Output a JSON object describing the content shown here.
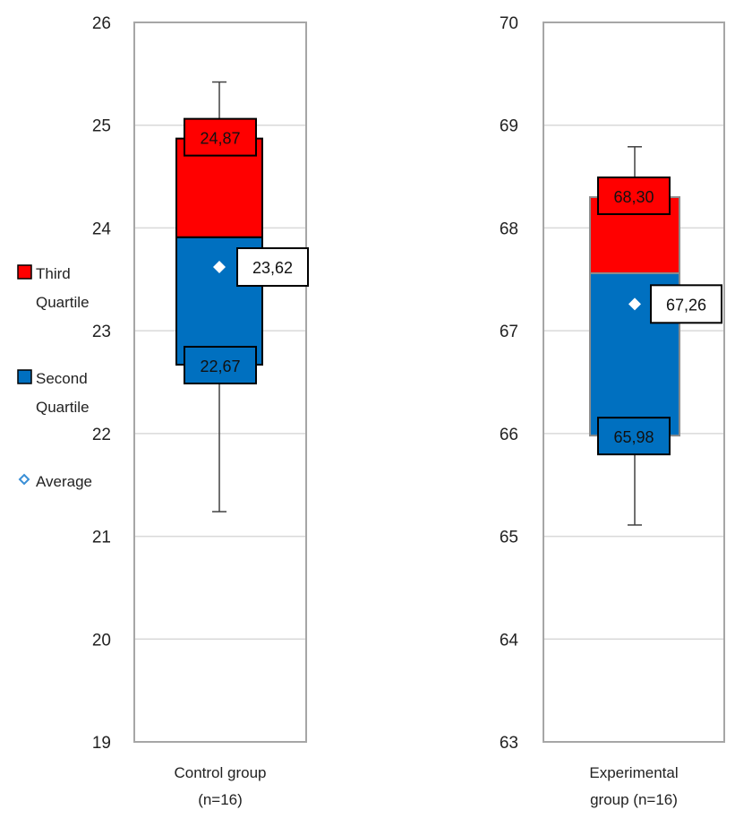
{
  "chart_data": [
    {
      "type": "box",
      "category": "Control group",
      "category_line2": "(n=16)",
      "ylim": [
        19,
        26
      ],
      "yticks": [
        "19",
        "20",
        "21",
        "22",
        "23",
        "24",
        "25",
        "26"
      ],
      "grid": true,
      "whisker_max": 25.42,
      "q3": 24.87,
      "median": 23.91,
      "q1": 22.67,
      "whisker_min": 21.24,
      "mean": 23.62,
      "labels": {
        "q3": "24,87",
        "q1": "22,67",
        "mean": "23,62"
      },
      "box_outline": "#000000"
    },
    {
      "type": "box",
      "category": "Experimental",
      "category_line2": "group (n=16)",
      "ylim": [
        63,
        70
      ],
      "yticks": [
        "63",
        "64",
        "65",
        "66",
        "67",
        "68",
        "69",
        "70"
      ],
      "grid": true,
      "whisker_max": 68.79,
      "q3": 68.3,
      "median": 67.56,
      "q1": 65.98,
      "whisker_min": 65.11,
      "mean": 67.26,
      "labels": {
        "q3": "68,30",
        "q1": "65,98",
        "mean": "67,26"
      },
      "box_outline": "#8c8c8c"
    }
  ],
  "legend": {
    "placement": "left",
    "items": [
      {
        "line1": "Third",
        "line2": "Quartile",
        "color": "#ff0000",
        "marker": "square"
      },
      {
        "line1": "Second",
        "line2": "Quartile",
        "color": "#0070c0",
        "marker": "square"
      },
      {
        "line1": "Average",
        "line2": "",
        "color": "#3a8fd6",
        "marker": "diamond"
      }
    ]
  },
  "colors": {
    "third_quartile": "#ff0000",
    "second_quartile": "#0070c0",
    "grid": "#d9d9d9",
    "frame": "#a6a6a6",
    "whisker": "#404040",
    "mean_marker": "#ffffff"
  }
}
